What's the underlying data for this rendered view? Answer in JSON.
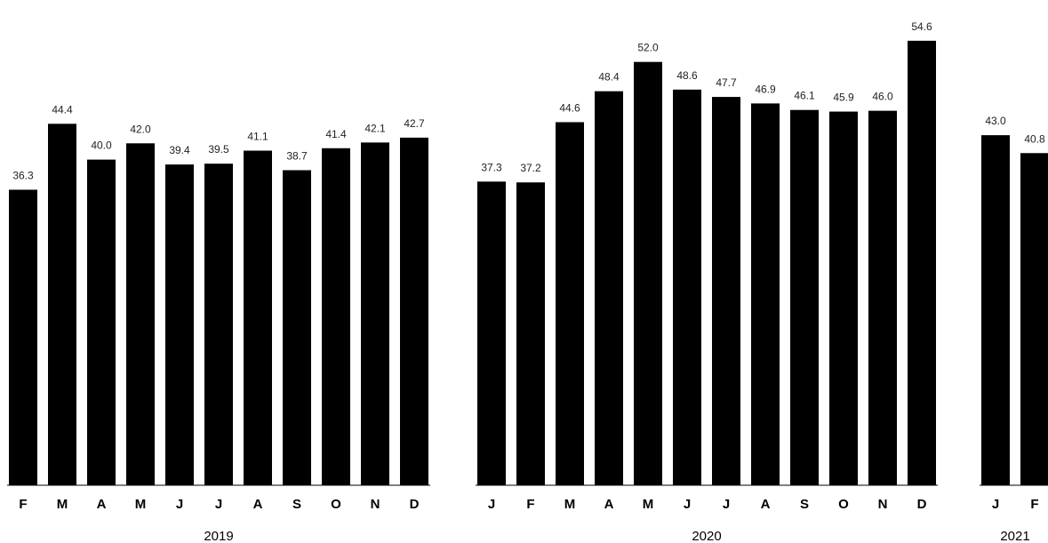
{
  "chart_data": {
    "type": "bar",
    "title": "",
    "xlabel": "",
    "ylabel": "",
    "ylim": [
      0,
      56
    ],
    "grid": false,
    "legend": "none",
    "bar_color": "#000000",
    "groups": [
      {
        "year": "2019",
        "categories": [
          "F",
          "M",
          "A",
          "M",
          "J",
          "J",
          "A",
          "S",
          "O",
          "N",
          "D"
        ],
        "values": [
          36.3,
          44.4,
          40.0,
          42.0,
          39.4,
          39.5,
          41.1,
          38.7,
          41.4,
          42.1,
          42.7
        ],
        "labels": [
          "36.3",
          "44.4",
          "40.0",
          "42.0",
          "39.4",
          "39.5",
          "41.1",
          "38.7",
          "41.4",
          "42.1",
          "42.7"
        ]
      },
      {
        "year": "2020",
        "categories": [
          "J",
          "F",
          "M",
          "A",
          "M",
          "J",
          "J",
          "A",
          "S",
          "O",
          "N",
          "D"
        ],
        "values": [
          37.3,
          37.2,
          44.6,
          48.4,
          52.0,
          48.6,
          47.7,
          46.9,
          46.1,
          45.9,
          46.0,
          54.6
        ],
        "labels": [
          "37.3",
          "37.2",
          "44.6",
          "48.4",
          "52.0",
          "48.6",
          "47.7",
          "46.9",
          "46.1",
          "45.9",
          "46.0",
          "54.6"
        ]
      },
      {
        "year": "2021",
        "categories": [
          "J",
          "F"
        ],
        "values": [
          43.0,
          40.8
        ],
        "labels": [
          "43.0",
          "40.8"
        ]
      }
    ]
  }
}
